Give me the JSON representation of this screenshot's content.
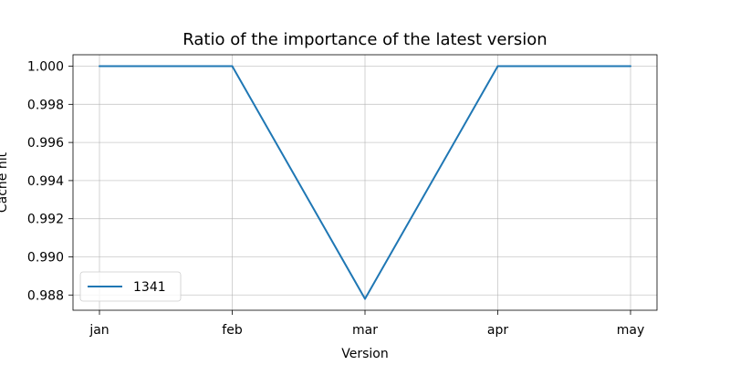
{
  "chart_data": {
    "type": "line",
    "title": "Ratio of the importance of the latest version",
    "xlabel": "Version",
    "ylabel": "Cache hit",
    "categories": [
      "jan",
      "feb",
      "mar",
      "apr",
      "may"
    ],
    "series": [
      {
        "name": "1341",
        "color": "#1f77b4",
        "values": [
          1.0,
          1.0,
          0.9878,
          1.0,
          1.0
        ]
      }
    ],
    "ylim": [
      0.9872,
      1.0006
    ],
    "yticks": [
      0.988,
      0.99,
      0.992,
      0.994,
      0.996,
      0.998,
      1.0
    ],
    "ytick_labels": [
      "0.988",
      "0.990",
      "0.992",
      "0.994",
      "0.996",
      "0.998",
      "1.000"
    ],
    "grid": true,
    "legend_position": "lower-left"
  }
}
